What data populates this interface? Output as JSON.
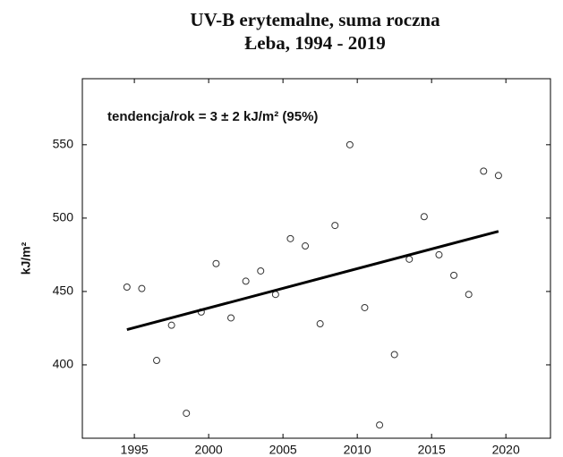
{
  "chart_data": {
    "type": "scatter",
    "title": [
      "UV-B erytemalne, suma roczna",
      "Łeba, 1994 - 2019"
    ],
    "y_label": "kJ/m²",
    "annotation": "tendencja/rok = 3 ± 2 kJ/m² (95%)",
    "x": [
      1994.5,
      1995.5,
      1996.5,
      1997.5,
      1998.5,
      1999.5,
      2000.5,
      2001.5,
      2002.5,
      2003.5,
      2004.5,
      2005.5,
      2006.5,
      2007.5,
      2008.5,
      2009.5,
      2010.5,
      2011.5,
      2012.5,
      2013.5,
      2014.5,
      2015.5,
      2016.5,
      2017.5,
      2018.5,
      2019.5
    ],
    "values": [
      453,
      452,
      403,
      427,
      367,
      436,
      469,
      432,
      457,
      464,
      448,
      486,
      481,
      428,
      495,
      550,
      439,
      359,
      407,
      472,
      501,
      475,
      461,
      448,
      532,
      529
    ],
    "trend": {
      "x": [
        1994.5,
        2019.5
      ],
      "values": [
        424,
        491
      ]
    },
    "xlim": [
      1991.5,
      2023
    ],
    "ylim": [
      350,
      595
    ],
    "xticks": [
      1995,
      2000,
      2005,
      2010,
      2015,
      2020
    ],
    "yticks": [
      400,
      450,
      500,
      550
    ],
    "marker_color": "#333333",
    "line_color": "#000000"
  }
}
